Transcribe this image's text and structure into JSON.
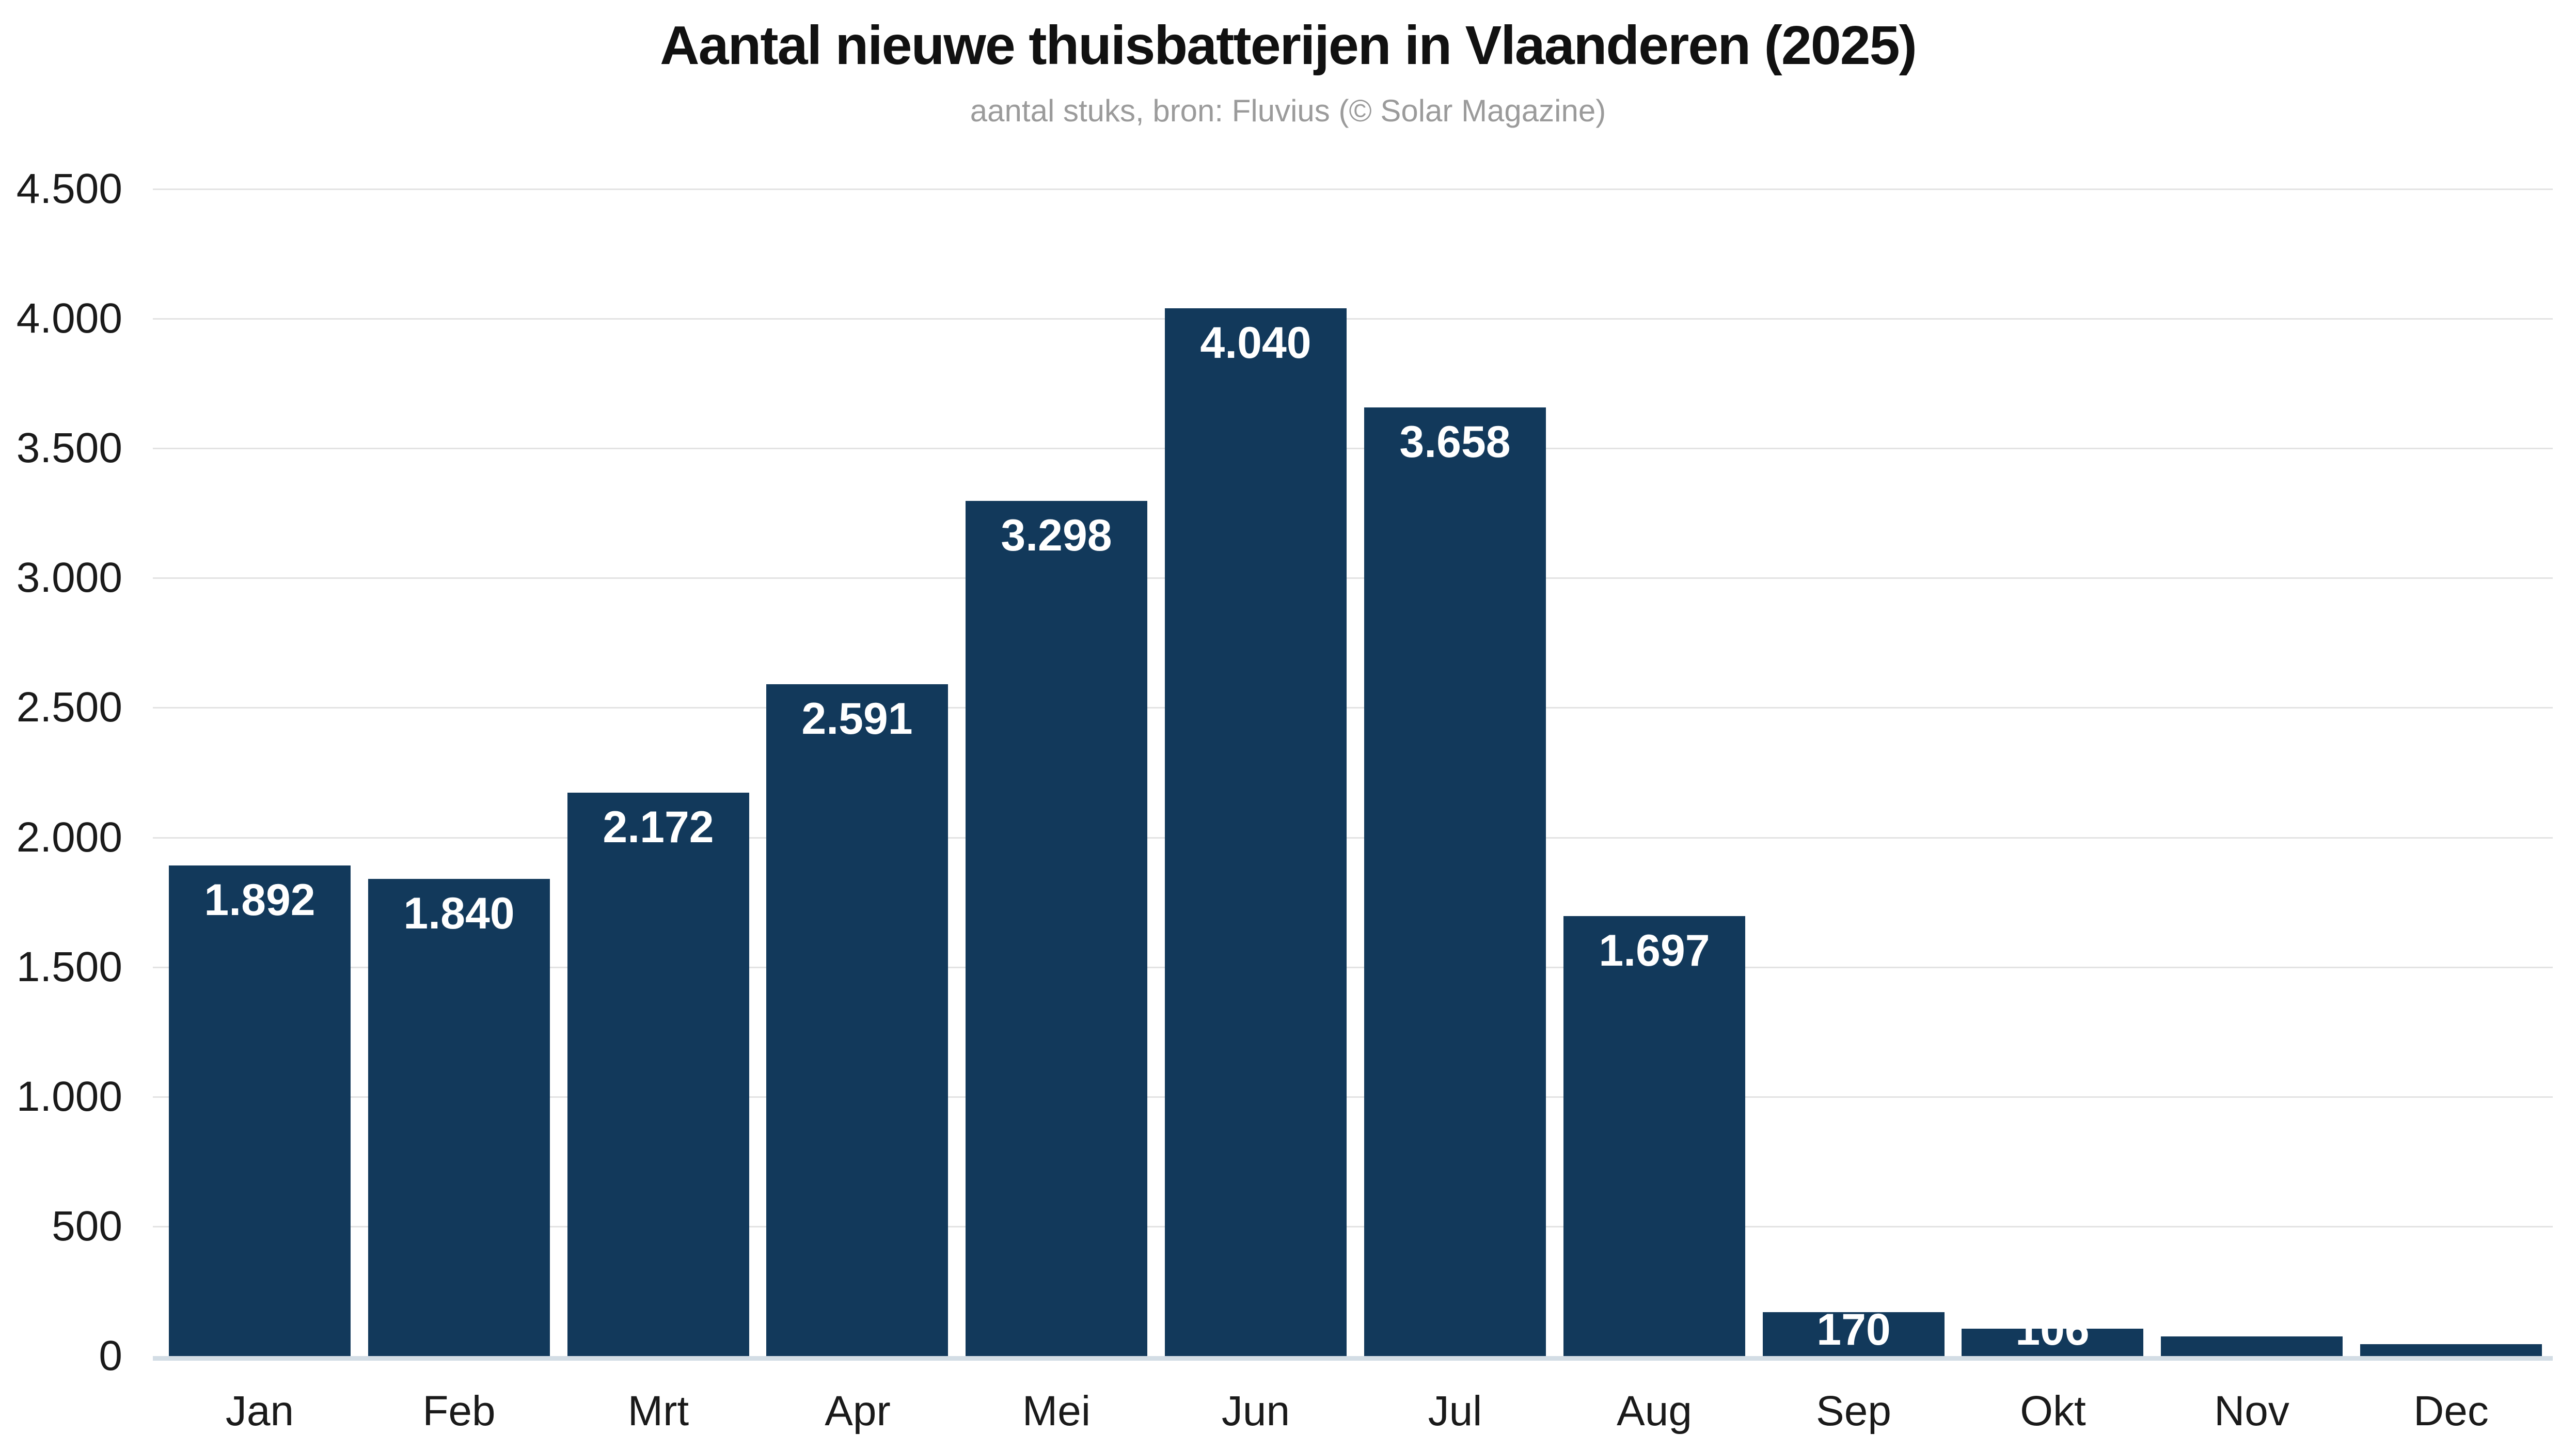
{
  "chart_data": {
    "type": "bar",
    "title": "Aantal nieuwe thuisbatterijen in Vlaanderen (2025)",
    "subtitle": "aantal stuks, bron: Fluvius (© Solar Magazine)",
    "categories": [
      "Jan",
      "Feb",
      "Mrt",
      "Apr",
      "Mei",
      "Jun",
      "Jul",
      "Aug",
      "Sep",
      "Okt",
      "Nov",
      "Dec"
    ],
    "values": [
      1892,
      1840,
      2172,
      2591,
      3298,
      4040,
      3658,
      1697,
      170,
      106,
      75,
      45
    ],
    "bar_value_labels": [
      "1.892",
      "1.840",
      "2.172",
      "2.591",
      "3.298",
      "4.040",
      "3.658",
      "1.697",
      "170",
      "106",
      "",
      ""
    ],
    "xlabel": "",
    "ylabel": "",
    "ylim": [
      0,
      4500
    ],
    "yticks": [
      0,
      500,
      1000,
      1500,
      2000,
      2500,
      3000,
      3500,
      4000,
      4500
    ],
    "ytick_labels": [
      "0",
      "500",
      "1.000",
      "1.500",
      "2.000",
      "2.500",
      "3.000",
      "3.500",
      "4.000",
      "4.500"
    ],
    "grid": "horizontal",
    "legend": "none",
    "colors": {
      "bar": "#12395b",
      "bar_label": "#ffffff",
      "title": "#111111",
      "subtitle": "#9b9b9b",
      "axis_text": "#1a1a1a",
      "gridline": "#e3e3e3",
      "axis_line": "#d3dde5",
      "background": "#ffffff"
    }
  }
}
